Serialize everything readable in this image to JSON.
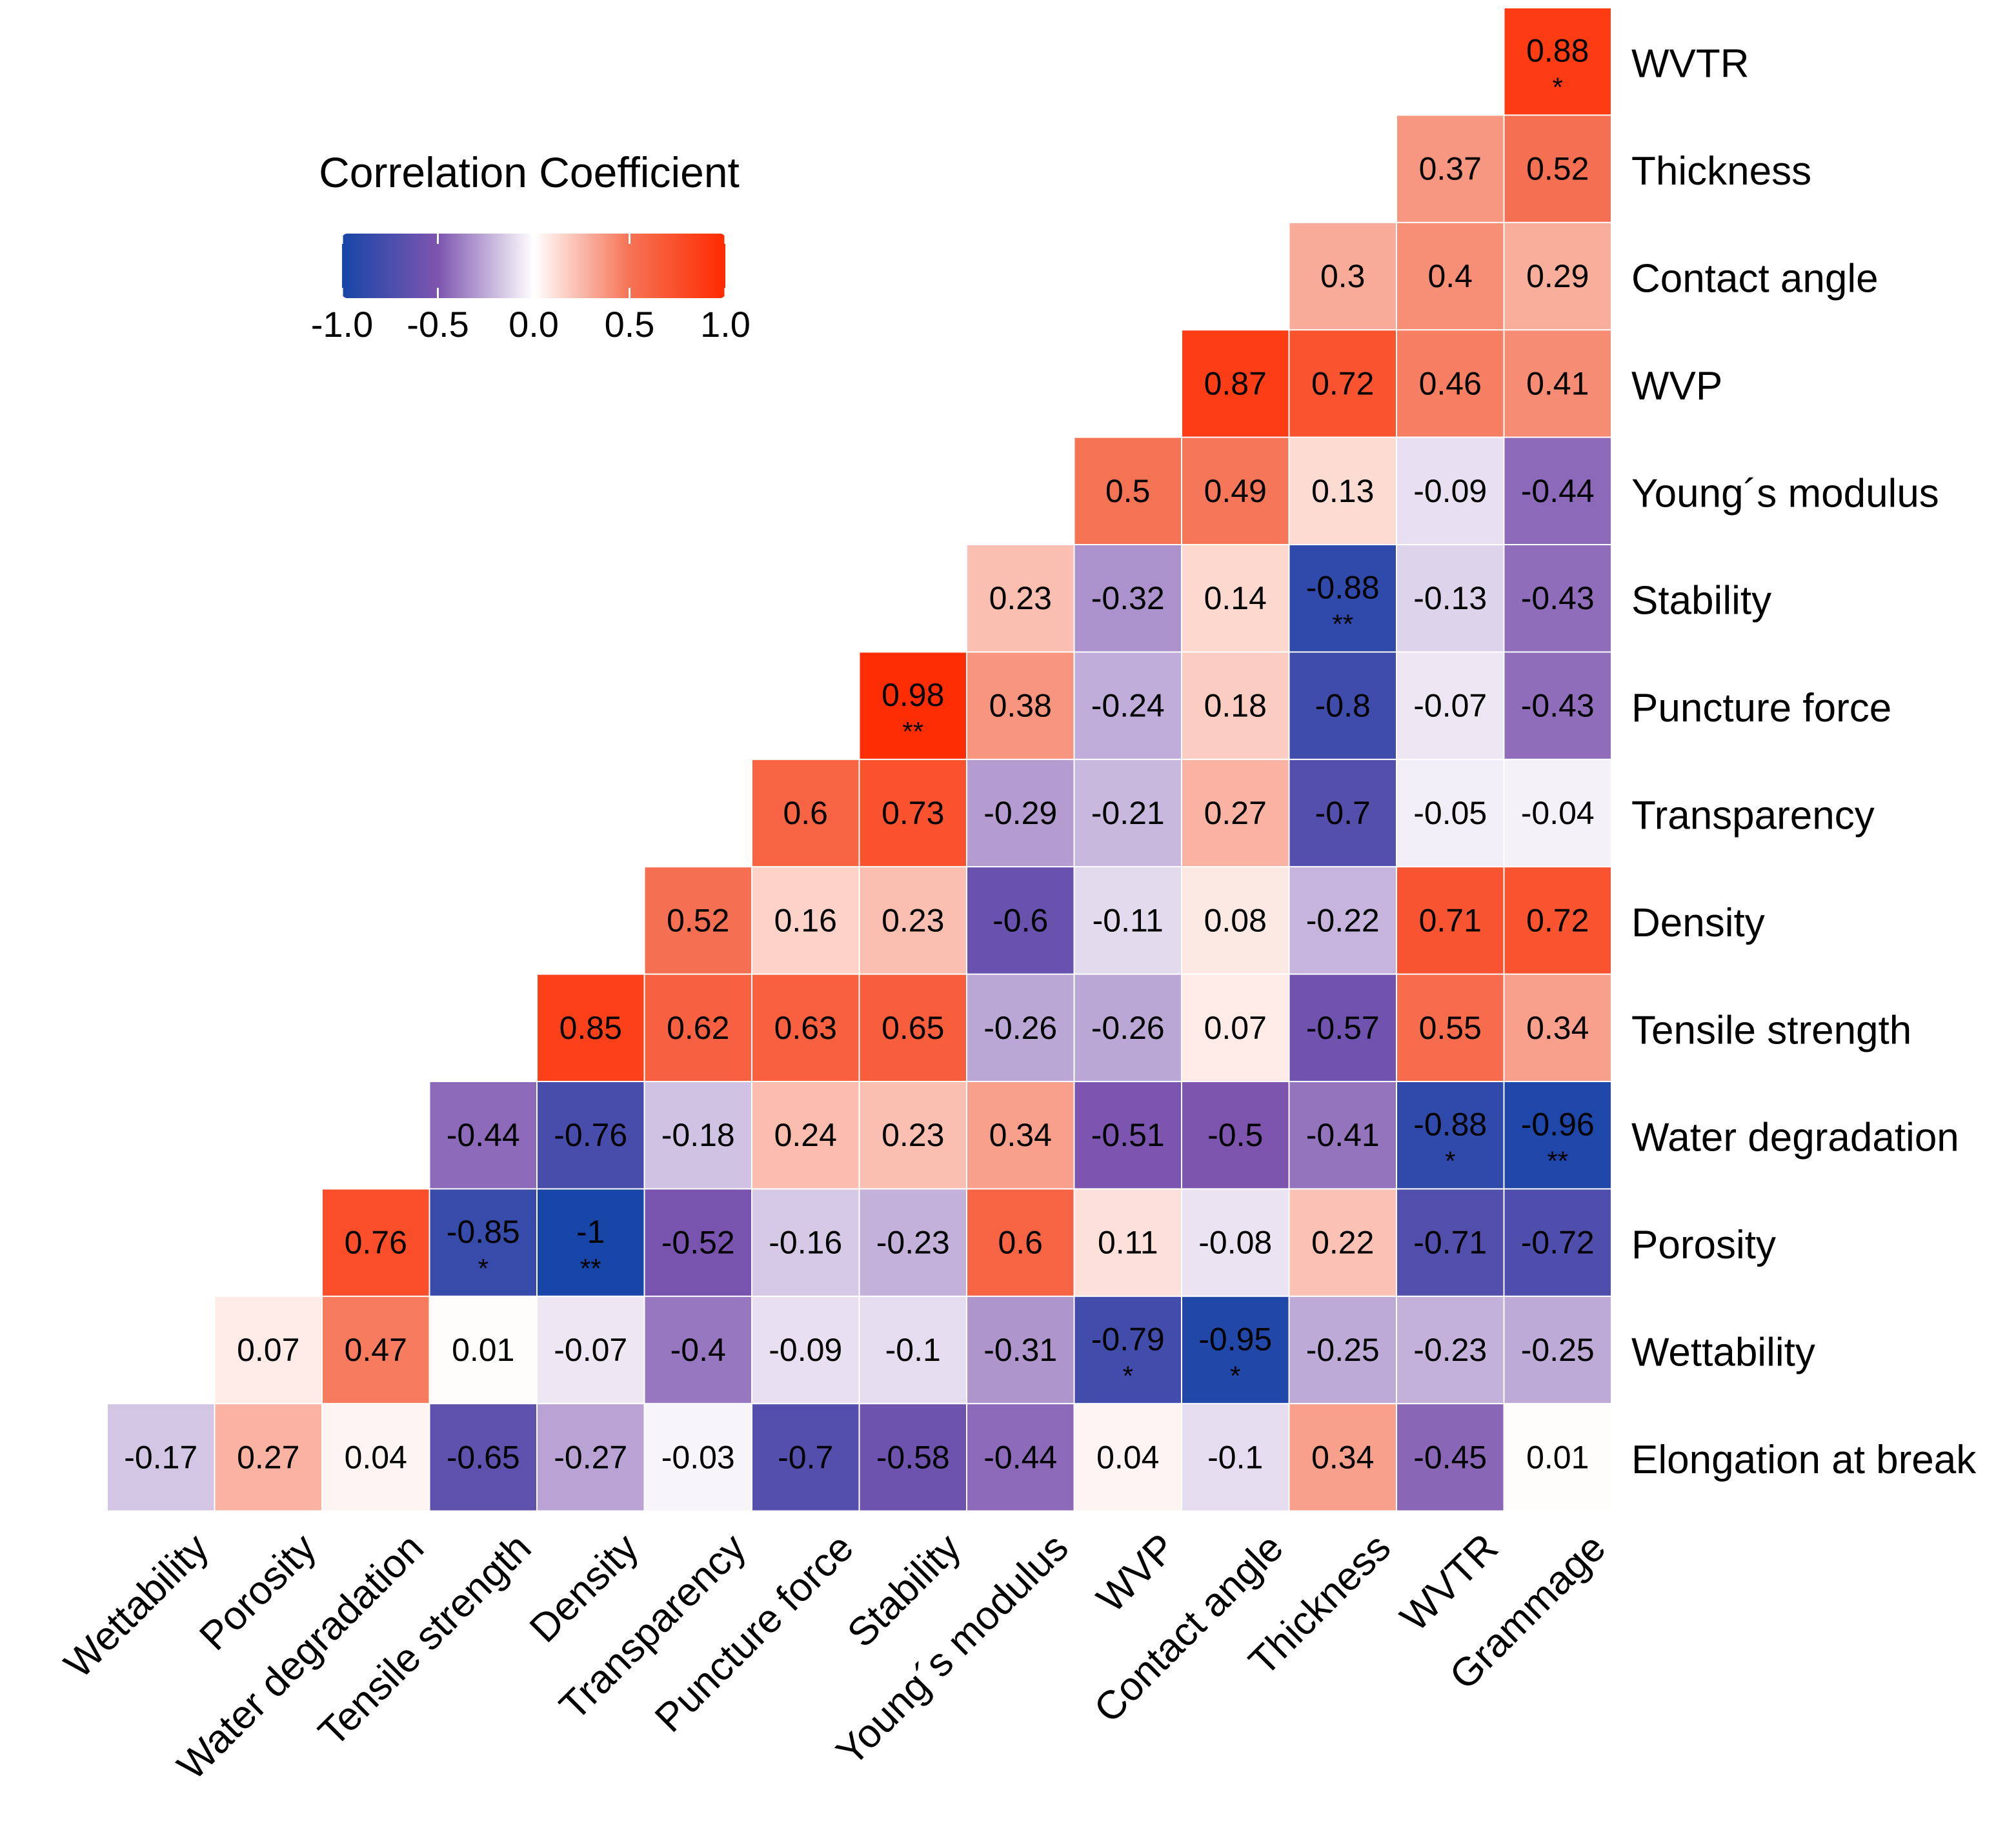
{
  "chart_data": {
    "type": "heatmap",
    "title": "",
    "legend": {
      "title": "Correlation Coefficient",
      "range": [
        -1.0,
        1.0
      ],
      "tick_labels": [
        "-1.0",
        "-0.5",
        "0.0",
        "0.5",
        "1.0"
      ],
      "tick_values": [
        -1.0,
        -0.5,
        0.0,
        0.5,
        1.0
      ],
      "placement": "top-left",
      "colors": {
        "low": "#1746a8",
        "mid": "#ffffff",
        "high": "#ff2a00"
      }
    },
    "columns": [
      "Wettability",
      "Porosity",
      "Water degradation",
      "Tensile strength",
      "Density",
      "Transparency",
      "Puncture force",
      "Stability",
      "Young´s modulus",
      "WVP",
      "Contact angle",
      "Thickness",
      "WVTR",
      "Grammage"
    ],
    "rows": [
      "WVTR",
      "Thickness",
      "Contact angle",
      "WVP",
      "Young´s modulus",
      "Stability",
      "Puncture force",
      "Transparency",
      "Density",
      "Tensile strength",
      "Water degradation",
      "Porosity",
      "Wettability",
      "Elongation at break"
    ],
    "cells": [
      [
        null,
        null,
        null,
        null,
        null,
        null,
        null,
        null,
        null,
        null,
        null,
        null,
        null,
        {
          "v": "0.88",
          "sig": "*"
        }
      ],
      [
        null,
        null,
        null,
        null,
        null,
        null,
        null,
        null,
        null,
        null,
        null,
        null,
        {
          "v": "0.37",
          "sig": ""
        },
        {
          "v": "0.52",
          "sig": ""
        }
      ],
      [
        null,
        null,
        null,
        null,
        null,
        null,
        null,
        null,
        null,
        null,
        null,
        {
          "v": "0.3",
          "sig": ""
        },
        {
          "v": "0.4",
          "sig": ""
        },
        {
          "v": "0.29",
          "sig": ""
        }
      ],
      [
        null,
        null,
        null,
        null,
        null,
        null,
        null,
        null,
        null,
        null,
        {
          "v": "0.87",
          "sig": ""
        },
        {
          "v": "0.72",
          "sig": ""
        },
        {
          "v": "0.46",
          "sig": ""
        },
        {
          "v": "0.41",
          "sig": ""
        }
      ],
      [
        null,
        null,
        null,
        null,
        null,
        null,
        null,
        null,
        null,
        {
          "v": "0.5",
          "sig": ""
        },
        {
          "v": "0.49",
          "sig": ""
        },
        {
          "v": "0.13",
          "sig": ""
        },
        {
          "v": "-0.09",
          "sig": ""
        },
        {
          "v": "-0.44",
          "sig": ""
        }
      ],
      [
        null,
        null,
        null,
        null,
        null,
        null,
        null,
        null,
        {
          "v": "0.23",
          "sig": ""
        },
        {
          "v": "-0.32",
          "sig": ""
        },
        {
          "v": "0.14",
          "sig": ""
        },
        {
          "v": "-0.88",
          "sig": "**"
        },
        {
          "v": "-0.13",
          "sig": ""
        },
        {
          "v": "-0.43",
          "sig": ""
        }
      ],
      [
        null,
        null,
        null,
        null,
        null,
        null,
        null,
        {
          "v": "0.98",
          "sig": "**"
        },
        {
          "v": "0.38",
          "sig": ""
        },
        {
          "v": "-0.24",
          "sig": ""
        },
        {
          "v": "0.18",
          "sig": ""
        },
        {
          "v": "-0.8",
          "sig": ""
        },
        {
          "v": "-0.07",
          "sig": ""
        },
        {
          "v": "-0.43",
          "sig": ""
        }
      ],
      [
        null,
        null,
        null,
        null,
        null,
        null,
        {
          "v": "0.6",
          "sig": ""
        },
        {
          "v": "0.73",
          "sig": ""
        },
        {
          "v": "-0.29",
          "sig": ""
        },
        {
          "v": "-0.21",
          "sig": ""
        },
        {
          "v": "0.27",
          "sig": ""
        },
        {
          "v": "-0.7",
          "sig": ""
        },
        {
          "v": "-0.05",
          "sig": ""
        },
        {
          "v": "-0.04",
          "sig": ""
        }
      ],
      [
        null,
        null,
        null,
        null,
        null,
        {
          "v": "0.52",
          "sig": ""
        },
        {
          "v": "0.16",
          "sig": ""
        },
        {
          "v": "0.23",
          "sig": ""
        },
        {
          "v": "-0.6",
          "sig": ""
        },
        {
          "v": "-0.11",
          "sig": ""
        },
        {
          "v": "0.08",
          "sig": ""
        },
        {
          "v": "-0.22",
          "sig": ""
        },
        {
          "v": "0.71",
          "sig": ""
        },
        {
          "v": "0.72",
          "sig": ""
        }
      ],
      [
        null,
        null,
        null,
        null,
        {
          "v": "0.85",
          "sig": ""
        },
        {
          "v": "0.62",
          "sig": ""
        },
        {
          "v": "0.63",
          "sig": ""
        },
        {
          "v": "0.65",
          "sig": ""
        },
        {
          "v": "-0.26",
          "sig": ""
        },
        {
          "v": "-0.26",
          "sig": ""
        },
        {
          "v": "0.07",
          "sig": ""
        },
        {
          "v": "-0.57",
          "sig": ""
        },
        {
          "v": "0.55",
          "sig": ""
        },
        {
          "v": "0.34",
          "sig": ""
        }
      ],
      [
        null,
        null,
        null,
        {
          "v": "-0.44",
          "sig": ""
        },
        {
          "v": "-0.76",
          "sig": ""
        },
        {
          "v": "-0.18",
          "sig": ""
        },
        {
          "v": "0.24",
          "sig": ""
        },
        {
          "v": "0.23",
          "sig": ""
        },
        {
          "v": "0.34",
          "sig": ""
        },
        {
          "v": "-0.51",
          "sig": ""
        },
        {
          "v": "-0.5",
          "sig": ""
        },
        {
          "v": "-0.41",
          "sig": ""
        },
        {
          "v": "-0.88",
          "sig": "*"
        },
        {
          "v": "-0.96",
          "sig": "**"
        }
      ],
      [
        null,
        null,
        {
          "v": "0.76",
          "sig": ""
        },
        {
          "v": "-0.85",
          "sig": "*"
        },
        {
          "v": "-1",
          "sig": "**"
        },
        {
          "v": "-0.52",
          "sig": ""
        },
        {
          "v": "-0.16",
          "sig": ""
        },
        {
          "v": "-0.23",
          "sig": ""
        },
        {
          "v": "0.6",
          "sig": ""
        },
        {
          "v": "0.11",
          "sig": ""
        },
        {
          "v": "-0.08",
          "sig": ""
        },
        {
          "v": "0.22",
          "sig": ""
        },
        {
          "v": "-0.71",
          "sig": ""
        },
        {
          "v": "-0.72",
          "sig": ""
        }
      ],
      [
        null,
        {
          "v": "0.07",
          "sig": ""
        },
        {
          "v": "0.47",
          "sig": ""
        },
        {
          "v": "0.01",
          "sig": ""
        },
        {
          "v": "-0.07",
          "sig": ""
        },
        {
          "v": "-0.4",
          "sig": ""
        },
        {
          "v": "-0.09",
          "sig": ""
        },
        {
          "v": "-0.1",
          "sig": ""
        },
        {
          "v": "-0.31",
          "sig": ""
        },
        {
          "v": "-0.79",
          "sig": "*"
        },
        {
          "v": "-0.95",
          "sig": "*"
        },
        {
          "v": "-0.25",
          "sig": ""
        },
        {
          "v": "-0.23",
          "sig": ""
        },
        {
          "v": "-0.25",
          "sig": ""
        }
      ],
      [
        {
          "v": "-0.17",
          "sig": ""
        },
        {
          "v": "0.27",
          "sig": ""
        },
        {
          "v": "0.04",
          "sig": ""
        },
        {
          "v": "-0.65",
          "sig": ""
        },
        {
          "v": "-0.27",
          "sig": ""
        },
        {
          "v": "-0.03",
          "sig": ""
        },
        {
          "v": "-0.7",
          "sig": ""
        },
        {
          "v": "-0.58",
          "sig": ""
        },
        {
          "v": "-0.44",
          "sig": ""
        },
        {
          "v": "0.04",
          "sig": ""
        },
        {
          "v": "-0.1",
          "sig": ""
        },
        {
          "v": "0.34",
          "sig": ""
        },
        {
          "v": "-0.45",
          "sig": ""
        },
        {
          "v": "0.01",
          "sig": ""
        }
      ]
    ]
  }
}
